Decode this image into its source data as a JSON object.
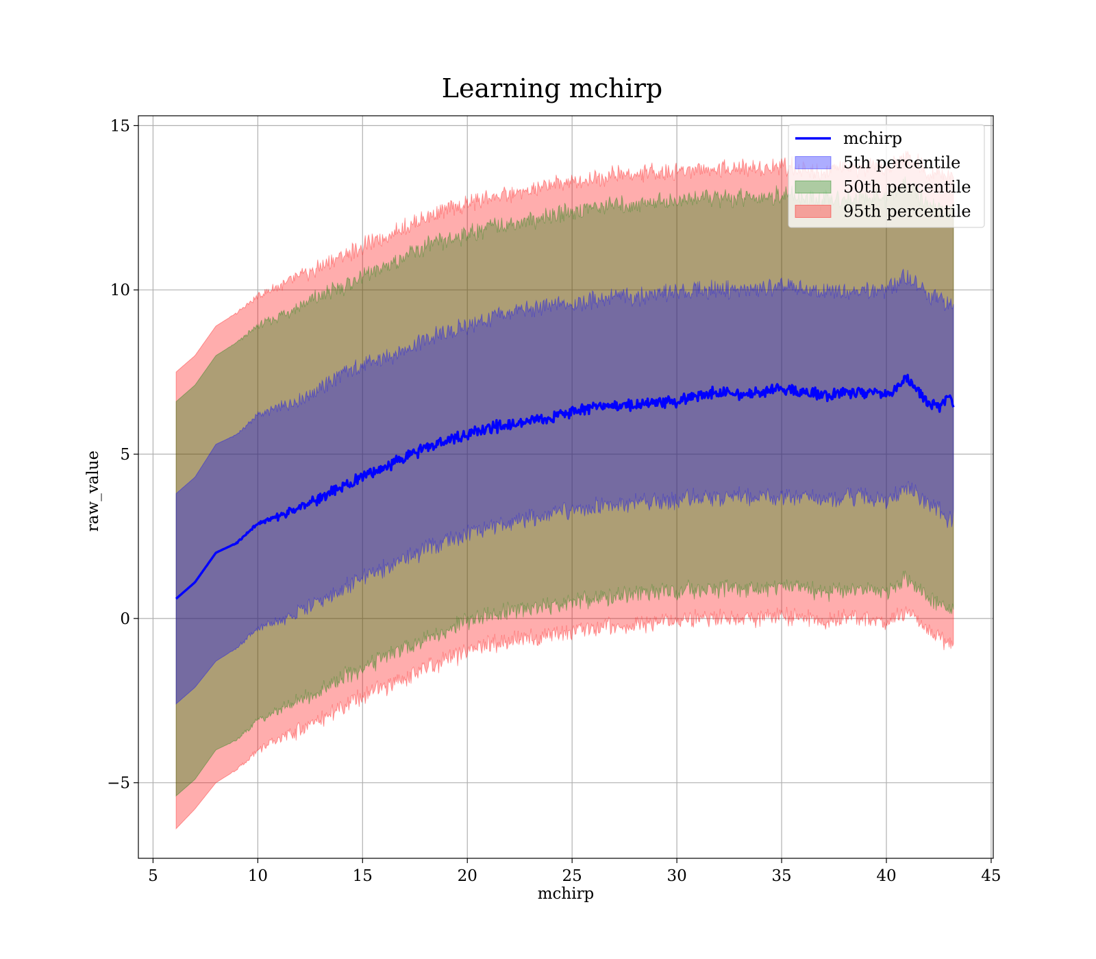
{
  "chart_data": {
    "type": "area",
    "title": "Learning mchirp",
    "xlabel": "mchirp",
    "ylabel": "raw_value",
    "xlim": [
      4.3,
      45.1
    ],
    "ylim": [
      -7.3,
      15.3
    ],
    "xticks": [
      5,
      10,
      15,
      20,
      25,
      30,
      35,
      40,
      45
    ],
    "xtick_labels": [
      "5",
      "10",
      "15",
      "20",
      "25",
      "30",
      "35",
      "40",
      "45"
    ],
    "yticks": [
      -5,
      0,
      5,
      10,
      15
    ],
    "ytick_labels": [
      "−5",
      "0",
      "5",
      "10",
      "15"
    ],
    "grid": true,
    "legend_position": "top-right",
    "colors": {
      "line": "#0000ff",
      "band_5": "#0000ff",
      "band_50": "#008000",
      "band_95": "#ff0000"
    },
    "x": [
      6.1,
      7,
      8,
      9,
      10,
      11,
      12,
      13,
      14,
      15,
      16,
      17,
      18,
      19,
      20,
      21,
      22,
      23,
      24,
      25,
      26,
      27,
      28,
      29,
      30,
      31,
      32,
      33,
      34,
      35,
      36,
      37,
      38,
      39,
      40,
      41,
      42,
      42.5,
      43,
      43.2
    ],
    "series": [
      {
        "name": "mchirp",
        "type": "line",
        "values": [
          0.6,
          1.1,
          2.0,
          2.3,
          2.9,
          3.1,
          3.4,
          3.7,
          4.0,
          4.3,
          4.6,
          4.9,
          5.2,
          5.4,
          5.6,
          5.8,
          5.9,
          6.0,
          6.1,
          6.3,
          6.4,
          6.5,
          6.5,
          6.6,
          6.6,
          6.8,
          6.9,
          6.8,
          6.9,
          7.0,
          6.9,
          6.8,
          6.9,
          6.9,
          6.8,
          7.3,
          6.6,
          6.4,
          6.8,
          6.6
        ]
      },
      {
        "name": "5th percentile",
        "type": "band",
        "lower": [
          -2.6,
          -2.1,
          -1.3,
          -0.9,
          -0.3,
          -0.1,
          0.2,
          0.5,
          0.9,
          1.2,
          1.5,
          1.8,
          2.1,
          2.3,
          2.6,
          2.8,
          2.9,
          3.1,
          3.2,
          3.3,
          3.4,
          3.5,
          3.5,
          3.6,
          3.6,
          3.7,
          3.7,
          3.7,
          3.7,
          3.7,
          3.7,
          3.6,
          3.7,
          3.7,
          3.6,
          4.0,
          3.5,
          3.3,
          3.0,
          3.1
        ],
        "upper": [
          3.8,
          4.3,
          5.3,
          5.6,
          6.2,
          6.4,
          6.7,
          7.0,
          7.4,
          7.7,
          7.9,
          8.2,
          8.5,
          8.7,
          8.9,
          9.1,
          9.3,
          9.4,
          9.5,
          9.6,
          9.7,
          9.8,
          9.8,
          9.9,
          9.9,
          10.0,
          10.0,
          10.0,
          10.0,
          10.1,
          10.0,
          9.9,
          10.0,
          10.0,
          10.0,
          10.4,
          9.8,
          9.8,
          9.5,
          9.6
        ]
      },
      {
        "name": "50th percentile",
        "type": "band",
        "lower": [
          -5.4,
          -4.9,
          -4.0,
          -3.7,
          -3.1,
          -2.8,
          -2.5,
          -2.2,
          -1.8,
          -1.5,
          -1.2,
          -0.9,
          -0.6,
          -0.4,
          -0.1,
          0.1,
          0.2,
          0.3,
          0.4,
          0.5,
          0.6,
          0.7,
          0.7,
          0.8,
          0.8,
          0.9,
          0.9,
          0.9,
          0.9,
          1.0,
          0.9,
          0.8,
          0.9,
          0.9,
          0.8,
          1.2,
          0.6,
          0.5,
          0.2,
          0.3
        ],
        "upper": [
          6.6,
          7.1,
          8.0,
          8.4,
          8.9,
          9.2,
          9.5,
          9.8,
          10.1,
          10.4,
          10.7,
          11.0,
          11.3,
          11.5,
          11.7,
          11.9,
          12.0,
          12.1,
          12.3,
          12.4,
          12.5,
          12.6,
          12.6,
          12.7,
          12.7,
          12.8,
          12.8,
          12.8,
          12.8,
          12.9,
          12.8,
          12.7,
          12.8,
          12.8,
          12.8,
          13.2,
          12.6,
          12.5,
          12.4,
          12.4
        ]
      },
      {
        "name": "95th percentile",
        "type": "band",
        "lower": [
          -6.4,
          -5.8,
          -5.0,
          -4.6,
          -4.0,
          -3.7,
          -3.4,
          -3.1,
          -2.7,
          -2.4,
          -2.1,
          -1.8,
          -1.5,
          -1.3,
          -1.0,
          -0.8,
          -0.7,
          -0.6,
          -0.5,
          -0.4,
          -0.3,
          -0.2,
          -0.2,
          -0.1,
          -0.1,
          0.0,
          0.0,
          0.0,
          0.0,
          0.1,
          0.0,
          -0.1,
          0.0,
          0.0,
          -0.1,
          0.2,
          -0.4,
          -0.5,
          -0.8,
          -0.7
        ],
        "upper": [
          7.5,
          8.0,
          8.9,
          9.3,
          9.8,
          10.1,
          10.4,
          10.7,
          11.0,
          11.3,
          11.6,
          11.9,
          12.2,
          12.4,
          12.6,
          12.8,
          12.9,
          13.0,
          13.2,
          13.3,
          13.4,
          13.5,
          13.5,
          13.6,
          13.6,
          13.7,
          13.7,
          13.7,
          13.7,
          13.8,
          13.7,
          13.6,
          13.7,
          13.7,
          13.7,
          14.1,
          13.6,
          13.6,
          13.4,
          13.5
        ]
      }
    ]
  }
}
